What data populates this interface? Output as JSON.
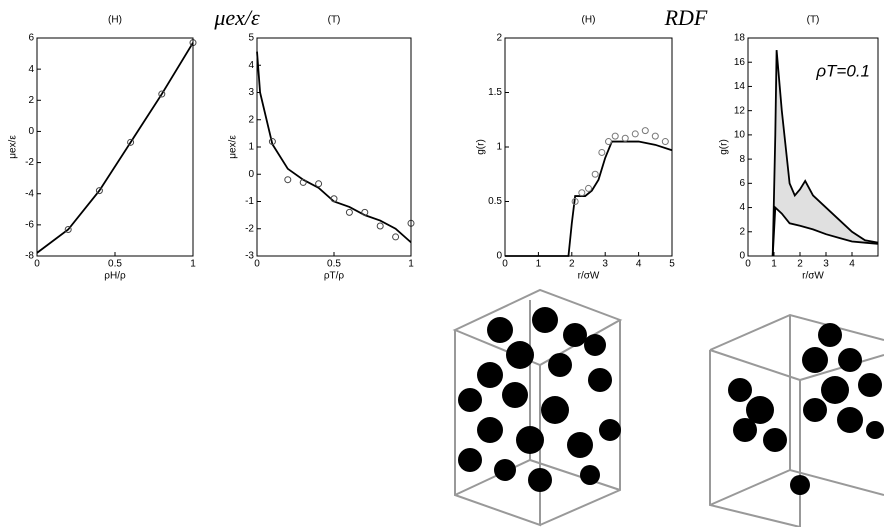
{
  "headings": [
    "μex/ε",
    "RDF"
  ],
  "chart_data": [
    {
      "type": "line",
      "title": "(H)",
      "xlabel": "ρH/ρ",
      "ylabel": "μex/ε",
      "xlim": [
        0,
        1
      ],
      "ylim": [
        -8,
        6
      ],
      "xticks": [
        0,
        0.5,
        1
      ],
      "yticks": [
        -8,
        -6,
        -4,
        -2,
        0,
        2,
        4,
        6
      ],
      "series": [
        {
          "color": "#000",
          "style": "line",
          "x": [
            0,
            0.2,
            0.4,
            0.6,
            0.8,
            1
          ],
          "values": [
            -7.8,
            -6.3,
            -3.8,
            -0.7,
            2.4,
            5.7
          ]
        },
        {
          "color": "#444",
          "style": "markers",
          "x": [
            0.2,
            0.4,
            0.6,
            0.8,
            1
          ],
          "values": [
            -6.3,
            -3.8,
            -0.7,
            2.4,
            5.7
          ]
        }
      ]
    },
    {
      "type": "line",
      "title": "(T)",
      "xlabel": "ρT/ρ",
      "ylabel": "μex/ε",
      "xlim": [
        0,
        1
      ],
      "ylim": [
        -3,
        5
      ],
      "xticks": [
        0,
        0.5,
        1
      ],
      "yticks": [
        -3,
        -2,
        -1,
        0,
        1,
        2,
        3,
        4,
        5
      ],
      "series": [
        {
          "color": "#000",
          "style": "line",
          "x": [
            0,
            0.02,
            0.1,
            0.2,
            0.3,
            0.4,
            0.5,
            0.6,
            0.7,
            0.8,
            0.9,
            1
          ],
          "values": [
            4.5,
            3,
            1.1,
            0.2,
            -0.2,
            -0.5,
            -1,
            -1.2,
            -1.5,
            -1.7,
            -2,
            -2.5
          ]
        },
        {
          "color": "#444",
          "style": "markers",
          "x": [
            0.1,
            0.2,
            0.3,
            0.4,
            0.5,
            0.6,
            0.7,
            0.8,
            0.9,
            1
          ],
          "values": [
            1.2,
            -0.2,
            -0.3,
            -0.35,
            -0.9,
            -1.4,
            -1.4,
            -1.9,
            -2.3,
            -1.8
          ]
        }
      ]
    },
    {
      "type": "line",
      "title": "(H)",
      "xlabel": "r/σW",
      "ylabel": "g(r)",
      "xlim": [
        0,
        5
      ],
      "ylim": [
        0,
        2
      ],
      "xticks": [
        0,
        1,
        2,
        3,
        4,
        5
      ],
      "yticks": [
        0,
        0.5,
        1,
        1.5,
        2
      ],
      "series": [
        {
          "color": "#000",
          "style": "line",
          "x": [
            0,
            1.9,
            2,
            2.1,
            2.4,
            2.6,
            2.8,
            3,
            3.2,
            3.5,
            4,
            4.5,
            5
          ],
          "values": [
            0,
            0,
            0.3,
            0.55,
            0.55,
            0.6,
            0.7,
            0.9,
            1.05,
            1.05,
            1.05,
            1.02,
            0.97
          ]
        },
        {
          "color": "#777",
          "style": "markers",
          "x": [
            2.1,
            2.3,
            2.5,
            2.7,
            2.9,
            3.1,
            3.3,
            3.6,
            3.9,
            4.2,
            4.5,
            4.8
          ],
          "values": [
            0.5,
            0.58,
            0.62,
            0.75,
            0.95,
            1.05,
            1.1,
            1.08,
            1.12,
            1.15,
            1.1,
            1.05
          ]
        }
      ]
    },
    {
      "type": "line",
      "title": "(T)",
      "xlabel": "r/σW",
      "ylabel": "g(r)",
      "annotation": "ρT=0.1",
      "fill_between": true,
      "xlim": [
        0,
        5
      ],
      "ylim": [
        0,
        18
      ],
      "xticks": [
        0,
        1,
        2,
        3,
        4
      ],
      "yticks": [
        0,
        2,
        4,
        6,
        8,
        10,
        12,
        14,
        16,
        18
      ],
      "series": [
        {
          "color": "#000",
          "style": "line",
          "x": [
            0.95,
            1.05,
            1.1,
            1.3,
            1.6,
            1.8,
            2,
            2.2,
            2.5,
            3,
            3.5,
            4,
            4.5,
            5
          ],
          "values": [
            0,
            10,
            17,
            12,
            6,
            5,
            5.5,
            6.2,
            5,
            4,
            3,
            2,
            1.3,
            1.1
          ]
        },
        {
          "color": "#000",
          "style": "line",
          "x": [
            0.95,
            1.05,
            1.3,
            1.6,
            2,
            2.5,
            3,
            3.5,
            4,
            4.5,
            5
          ],
          "values": [
            0,
            4,
            3.5,
            2.7,
            2.5,
            2.2,
            1.8,
            1.5,
            1.2,
            1.1,
            1
          ]
        }
      ]
    }
  ]
}
